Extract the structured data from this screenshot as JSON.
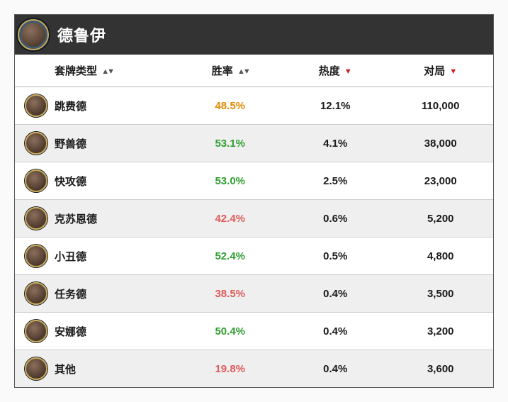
{
  "header": {
    "title": "德鲁伊"
  },
  "columns": {
    "name": {
      "label": "套牌类型",
      "sort": "both"
    },
    "wr": {
      "label": "胜率",
      "sort": "both"
    },
    "pop": {
      "label": "热度",
      "sort": "down"
    },
    "games": {
      "label": "对局",
      "sort": "down"
    }
  },
  "colors": {
    "win_high": "#2e9e2e",
    "win_mid": "#e08a00",
    "win_low": "#e05a5a"
  },
  "rows": [
    {
      "name": "跳费德",
      "wr": "48.5%",
      "wr_tier": "mid",
      "pop": "12.1%",
      "games": "110,000"
    },
    {
      "name": "野兽德",
      "wr": "53.1%",
      "wr_tier": "high",
      "pop": "4.1%",
      "games": "38,000"
    },
    {
      "name": "快攻德",
      "wr": "53.0%",
      "wr_tier": "high",
      "pop": "2.5%",
      "games": "23,000"
    },
    {
      "name": "克苏恩德",
      "wr": "42.4%",
      "wr_tier": "low",
      "pop": "0.6%",
      "games": "5,200"
    },
    {
      "name": "小丑德",
      "wr": "52.4%",
      "wr_tier": "high",
      "pop": "0.5%",
      "games": "4,800"
    },
    {
      "name": "任务德",
      "wr": "38.5%",
      "wr_tier": "low",
      "pop": "0.4%",
      "games": "3,500"
    },
    {
      "name": "安娜德",
      "wr": "50.4%",
      "wr_tier": "high",
      "pop": "0.4%",
      "games": "3,200"
    },
    {
      "name": "其他",
      "wr": "19.8%",
      "wr_tier": "low",
      "pop": "0.4%",
      "games": "3,600"
    }
  ]
}
